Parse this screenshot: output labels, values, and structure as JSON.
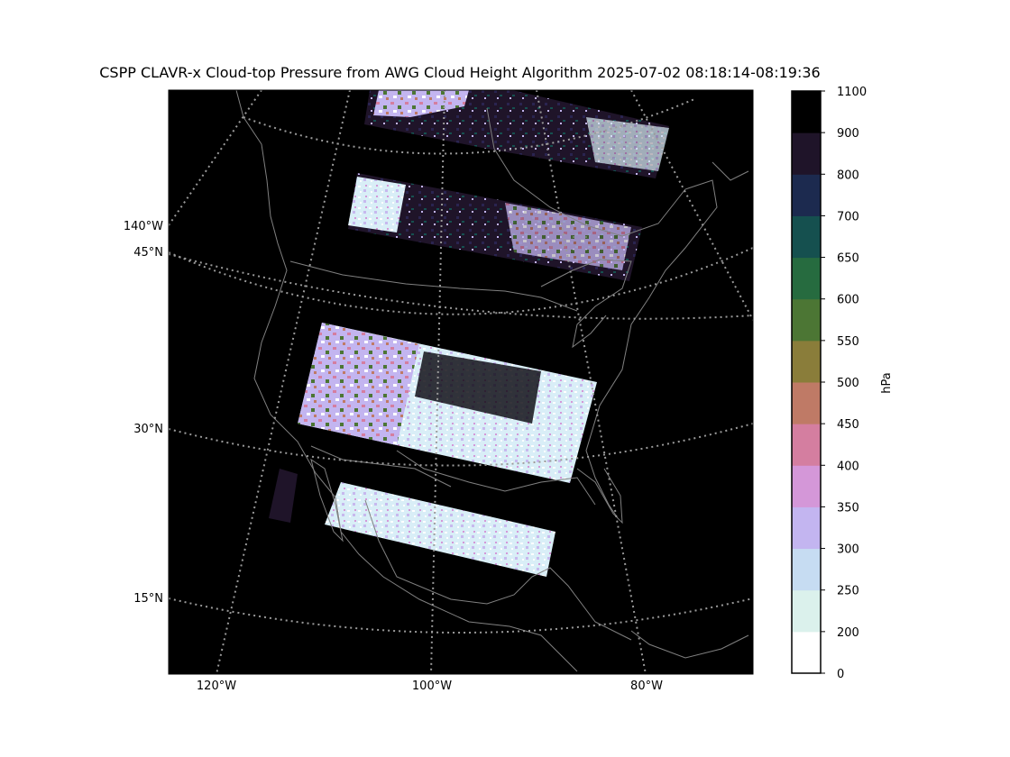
{
  "title": "CSPP CLAVR-x Cloud-top Pressure from AWG Cloud Height Algorithm 2025-07-02 08:18:14-08:19:36",
  "colors": {
    "background": "#000000",
    "graticule": "#9a9a9a",
    "coastline": "#808080"
  },
  "graticule": {
    "longitude_labels": [
      "120°W",
      "100°W",
      "80°W"
    ],
    "latitude_labels": [
      "15°N",
      "30°N",
      "45°N"
    ],
    "side_longitude_label": "140°W"
  },
  "colorbar": {
    "label": "hPa",
    "ticks": [
      "0",
      "200",
      "250",
      "300",
      "350",
      "400",
      "450",
      "500",
      "550",
      "600",
      "650",
      "700",
      "800",
      "900",
      "1100"
    ],
    "colors": [
      "#ffffff",
      "#dbf1ec",
      "#c6dcf2",
      "#c3b5f0",
      "#d497d8",
      "#d47ea0",
      "#bf7a66",
      "#8a7d3a",
      "#4c7634",
      "#266b3f",
      "#15504f",
      "#1c2a4f",
      "#1f1429",
      "#000000"
    ]
  }
}
